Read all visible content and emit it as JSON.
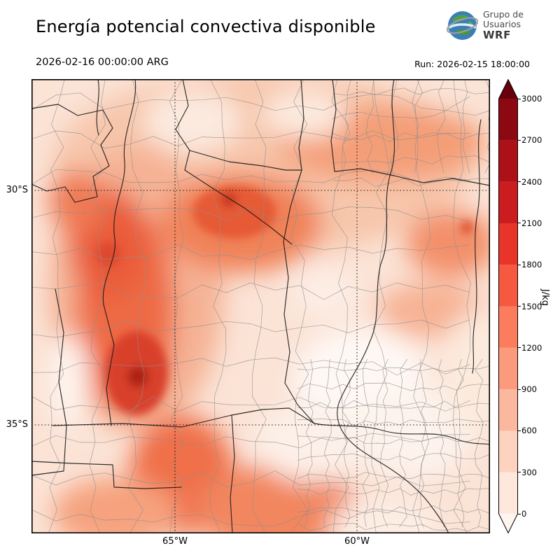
{
  "header": {
    "title": "Energía potencial convectiva disponible",
    "logo": {
      "line1": "Grupo de",
      "line2": "Usuarios",
      "line3": "WRF"
    }
  },
  "subheader": {
    "valid_time": "2026-02-16 00:00:00 ARG",
    "run_label": "Run: 2026-02-15 18:00:00"
  },
  "map": {
    "y_axis_labels": [
      "30°S",
      "35°S"
    ],
    "x_axis_labels": [
      "65°W",
      "60°W"
    ]
  },
  "colorbar": {
    "unit": "J/kg",
    "ticks": [
      0,
      300,
      600,
      900,
      1200,
      1500,
      1800,
      2100,
      2400,
      2700,
      3000
    ],
    "colors": [
      "#fee8dc",
      "#fdd3bf",
      "#fcb79f",
      "#fc9b7c",
      "#fb7d5d",
      "#f65940",
      "#e83429",
      "#cb1c1f",
      "#ac1117",
      "#8c0912"
    ],
    "under_color": "#fff5f0",
    "over_color": "#67000d"
  }
}
